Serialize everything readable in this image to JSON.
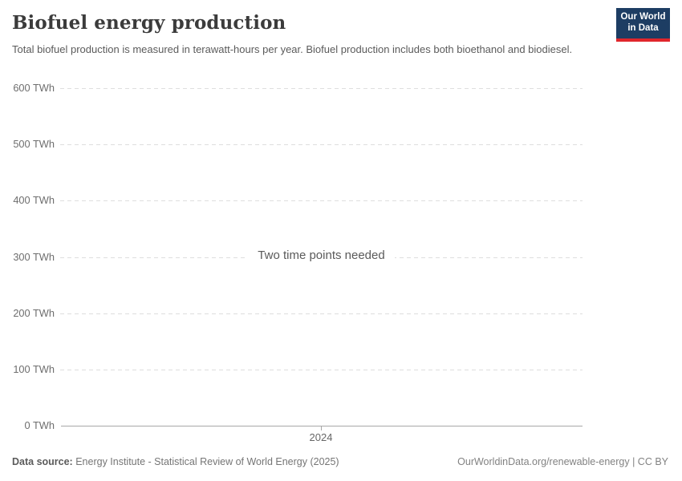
{
  "header": {
    "title": "Biofuel energy production",
    "subtitle": "Total biofuel production is measured in terawatt-hours per year. Biofuel production includes both bioethanol and biodiesel.",
    "logo": {
      "line1": "Our World",
      "line2": "in Data",
      "bg_color": "#1d3d63",
      "accent_color": "#e0262c"
    }
  },
  "chart_data": {
    "type": "line",
    "title": "Biofuel energy production",
    "xlabel": "",
    "ylabel": "",
    "ylim": [
      0,
      600
    ],
    "grid": true,
    "yticks": [
      {
        "value": 0,
        "label": "0 TWh"
      },
      {
        "value": 100,
        "label": "100 TWh"
      },
      {
        "value": 200,
        "label": "200 TWh"
      },
      {
        "value": 300,
        "label": "300 TWh"
      },
      {
        "value": 400,
        "label": "400 TWh"
      },
      {
        "value": 500,
        "label": "500 TWh"
      },
      {
        "value": 600,
        "label": "600 TWh"
      }
    ],
    "xticks": [
      "2024"
    ],
    "series": [],
    "empty_message": "Two time points needed"
  },
  "footer": {
    "datasource_label": "Data source:",
    "datasource_value": " Energy Institute - Statistical Review of World Energy (2025)",
    "attribution": "OurWorldinData.org/renewable-energy | CC BY"
  }
}
